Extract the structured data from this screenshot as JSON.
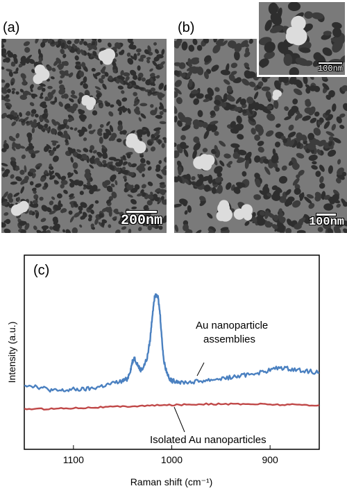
{
  "figure": {
    "panel_a": {
      "label": "(a)",
      "scale_bar": "200nm"
    },
    "panel_b": {
      "label": "(b)",
      "scale_bar": "100nm",
      "inset_scale_bar": "100nm"
    },
    "panel_c": {
      "label": "(c)"
    }
  },
  "chart_data": {
    "type": "line",
    "xlabel": "Raman shift (cm⁻¹)",
    "ylabel": "Intensity (a.u.)",
    "x_ticks": [
      1100,
      1000,
      900
    ],
    "xlim": [
      1150,
      850
    ],
    "x_reversed": true,
    "y_tick_labels": false,
    "annotations": [
      "Au nanoparticle",
      "assemblies",
      "Isolated Au nanoparticles"
    ],
    "series": [
      {
        "label": "Au nanoparticle assemblies",
        "color": "#4a80c0",
        "x": [
          1150,
          1140,
          1130,
          1120,
          1110,
          1100,
          1090,
          1080,
          1070,
          1060,
          1050,
          1045,
          1042,
          1040,
          1038,
          1035,
          1032,
          1029,
          1025,
          1022,
          1020,
          1018,
          1016,
          1014,
          1012,
          1010,
          1008,
          1005,
          1002,
          1000,
          995,
          990,
          980,
          970,
          960,
          950,
          940,
          930,
          920,
          910,
          900,
          890,
          880,
          870,
          860,
          850
        ],
        "y": [
          0.23,
          0.22,
          0.2,
          0.18,
          0.18,
          0.19,
          0.19,
          0.2,
          0.22,
          0.24,
          0.26,
          0.28,
          0.35,
          0.42,
          0.45,
          0.4,
          0.35,
          0.37,
          0.45,
          0.6,
          0.78,
          0.93,
          0.99,
          0.95,
          0.82,
          0.6,
          0.42,
          0.33,
          0.28,
          0.26,
          0.26,
          0.25,
          0.25,
          0.26,
          0.27,
          0.28,
          0.29,
          0.3,
          0.32,
          0.33,
          0.35,
          0.37,
          0.36,
          0.35,
          0.34,
          0.33
        ]
      },
      {
        "label": "Isolated Au nanoparticles",
        "color": "#c04848",
        "x": [
          1150,
          1130,
          1110,
          1090,
          1070,
          1050,
          1030,
          1010,
          990,
          970,
          950,
          930,
          910,
          890,
          870,
          850
        ],
        "y": [
          0.03,
          0.03,
          0.035,
          0.04,
          0.045,
          0.05,
          0.055,
          0.06,
          0.065,
          0.07,
          0.07,
          0.07,
          0.07,
          0.065,
          0.065,
          0.06
        ]
      }
    ]
  }
}
